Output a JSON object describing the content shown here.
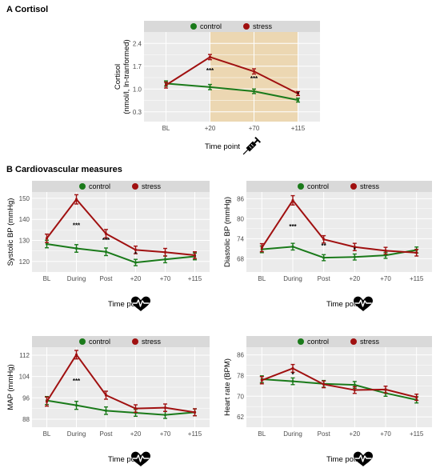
{
  "figure": {
    "panel_a_heading": "A Cortisol",
    "panel_b_heading": "B Cardiovascular measures"
  },
  "colors": {
    "control": "#1a7a1a",
    "stress": "#a01010",
    "panel_bg": "#ebebeb",
    "grid": "#ffffff",
    "legend_strip": "#d9d9d9",
    "highlight": "#ecd7b2"
  },
  "icons": {
    "cortisol": "syringe-icon",
    "cardio": "heart-pulse-icon"
  },
  "chart_data": [
    {
      "id": "cortisol",
      "type": "line",
      "legend": [
        "control",
        "stress"
      ],
      "categories": [
        "BL",
        "+20",
        "+70",
        "+115"
      ],
      "ylabel": "Cortisol\n(nmol/l, ln-tranformed)",
      "xlabel": "Time point",
      "yticks": [
        0.3,
        1.0,
        1.7,
        2.4
      ],
      "ylim": [
        0.0,
        2.75
      ],
      "highlight_range": [
        "+20",
        "+115"
      ],
      "series": [
        {
          "name": "control",
          "values": [
            1.17,
            1.06,
            0.93,
            0.66
          ],
          "errors": [
            0.08,
            0.08,
            0.07,
            0.06
          ]
        },
        {
          "name": "stress",
          "values": [
            1.12,
            1.98,
            1.54,
            0.86
          ],
          "errors": [
            0.09,
            0.08,
            0.08,
            0.06
          ]
        }
      ],
      "significance": [
        {
          "category": "+20",
          "y": 1.5,
          "label": "***"
        },
        {
          "category": "+70",
          "y": 1.25,
          "label": "***"
        },
        {
          "category": "+115",
          "y": 0.77,
          "label": "*"
        }
      ]
    },
    {
      "id": "systolic",
      "type": "line",
      "legend": [
        "control",
        "stress"
      ],
      "categories": [
        "BL",
        "During",
        "Post",
        "+20",
        "+70",
        "+115"
      ],
      "ylabel": "Systolic BP (mmHg)",
      "xlabel": "Time point",
      "yticks": [
        120,
        130,
        140,
        150
      ],
      "ylim": [
        115,
        153
      ],
      "series": [
        {
          "name": "control",
          "values": [
            128.3,
            126.2,
            124.6,
            119.5,
            121.0,
            122.4
          ],
          "errors": [
            1.8,
            1.8,
            1.8,
            1.5,
            1.6,
            1.6
          ]
        },
        {
          "name": "stress",
          "values": [
            131.0,
            149.5,
            133.2,
            125.5,
            124.4,
            123.0
          ],
          "errors": [
            2.0,
            2.2,
            2.0,
            1.8,
            1.8,
            1.6
          ]
        }
      ],
      "significance": [
        {
          "category": "During",
          "y": 136,
          "label": "***"
        },
        {
          "category": "Post",
          "y": 129,
          "label": "***"
        },
        {
          "category": "+20",
          "y": 122.5,
          "label": "*"
        }
      ]
    },
    {
      "id": "diastolic",
      "type": "line",
      "legend": [
        "control",
        "stress"
      ],
      "categories": [
        "BL",
        "During",
        "Post",
        "+20",
        "+70",
        "+115"
      ],
      "ylabel": "Diastolic BP (mmHg)",
      "xlabel": "Time point",
      "yticks": [
        68,
        74,
        80,
        86
      ],
      "ylim": [
        64,
        88
      ],
      "series": [
        {
          "name": "control",
          "values": [
            70.8,
            71.6,
            68.3,
            68.5,
            69.0,
            70.6
          ],
          "errors": [
            1.0,
            1.0,
            0.9,
            0.9,
            0.9,
            0.9
          ]
        },
        {
          "name": "stress",
          "values": [
            71.3,
            85.5,
            73.8,
            71.5,
            70.4,
            69.8
          ],
          "errors": [
            1.2,
            1.4,
            1.1,
            1.1,
            1.0,
            1.0
          ]
        }
      ],
      "significance": [
        {
          "category": "During",
          "y": 77,
          "label": "***"
        },
        {
          "category": "Post",
          "y": 71.2,
          "label": "**"
        },
        {
          "category": "+20",
          "y": 70.0,
          "label": "*"
        }
      ]
    },
    {
      "id": "map",
      "type": "line",
      "legend": [
        "control",
        "stress"
      ],
      "categories": [
        "BL",
        "During",
        "Post",
        "+20",
        "+70",
        "+115"
      ],
      "ylabel": "MAP (mmHg)",
      "xlabel": "Time point",
      "yticks": [
        88,
        96,
        104,
        112
      ],
      "ylim": [
        85,
        115
      ],
      "series": [
        {
          "name": "control",
          "values": [
            95.0,
            93.2,
            91.2,
            90.4,
            89.6,
            90.6
          ],
          "errors": [
            1.5,
            1.5,
            1.4,
            1.3,
            1.3,
            1.3
          ]
        },
        {
          "name": "stress",
          "values": [
            94.6,
            112.2,
            97.0,
            92.0,
            92.3,
            90.6
          ],
          "errors": [
            1.7,
            1.6,
            1.5,
            1.4,
            1.4,
            1.3
          ]
        }
      ],
      "significance": [
        {
          "category": "During",
          "y": 101.5,
          "label": "***"
        }
      ]
    },
    {
      "id": "heartrate",
      "type": "line",
      "legend": [
        "control",
        "stress"
      ],
      "categories": [
        "BL",
        "During",
        "Post",
        "+20",
        "+70",
        "+115"
      ],
      "ylabel": "Heart rate (BPM)",
      "xlabel": "Time point",
      "yticks": [
        62,
        70,
        78,
        86
      ],
      "ylim": [
        58,
        89
      ],
      "series": [
        {
          "name": "control",
          "values": [
            76.6,
            75.8,
            74.8,
            74.4,
            71.2,
            68.6
          ],
          "errors": [
            1.3,
            1.3,
            1.3,
            1.3,
            1.2,
            1.2
          ]
        },
        {
          "name": "stress",
          "values": [
            76.2,
            80.8,
            74.6,
            72.4,
            72.6,
            69.6
          ],
          "errors": [
            1.4,
            1.5,
            1.3,
            1.3,
            1.3,
            1.2
          ]
        }
      ],
      "significance": [
        {
          "category": "During",
          "y": 77.5,
          "label": "*"
        }
      ]
    }
  ]
}
